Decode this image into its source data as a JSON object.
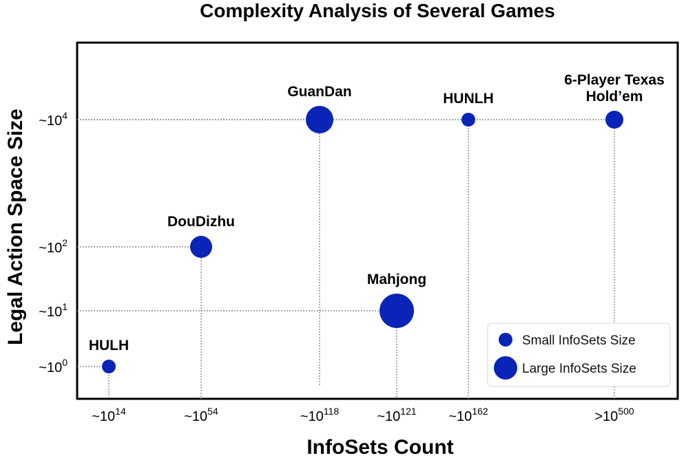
{
  "chart_data": {
    "type": "scatter",
    "title": "Complexity Analysis of Several Games",
    "xlabel": "InfoSets Count",
    "ylabel": "Legal Action Space Size",
    "x_ticks": [
      {
        "base": "~10",
        "exp": "14"
      },
      {
        "base": "~10",
        "exp": "54"
      },
      {
        "base": "~10",
        "exp": "118"
      },
      {
        "base": "~10",
        "exp": "121"
      },
      {
        "base": "~10",
        "exp": "162"
      },
      {
        "base": ">10",
        "exp": "500"
      }
    ],
    "y_ticks": [
      {
        "base": "~10",
        "exp": "0"
      },
      {
        "base": "~10",
        "exp": "1"
      },
      {
        "base": "~10",
        "exp": "2"
      },
      {
        "base": "~10",
        "exp": "4"
      }
    ],
    "points": [
      {
        "label": [
          "HULH"
        ],
        "x_tick": 0,
        "y_tick": 0,
        "infoset_size": "small"
      },
      {
        "label": [
          "DouDizhu"
        ],
        "x_tick": 1,
        "y_tick": 2,
        "infoset_size": "medium"
      },
      {
        "label": [
          "GuanDan"
        ],
        "x_tick": 2,
        "y_tick": 3,
        "infoset_size": "large"
      },
      {
        "label": [
          "Mahjong"
        ],
        "x_tick": 3,
        "y_tick": 1,
        "infoset_size": "xlarge"
      },
      {
        "label": [
          "HUNLH"
        ],
        "x_tick": 4,
        "y_tick": 3,
        "infoset_size": "small"
      },
      {
        "label": [
          "6-Player Texas",
          "Hold’em"
        ],
        "x_tick": 5,
        "y_tick": 3,
        "infoset_size": "medium-small"
      }
    ],
    "legend": {
      "position": "bottom-right",
      "entries": [
        {
          "label": "Small InfoSets Size",
          "size": "small"
        },
        {
          "label": "Large InfoSets Size",
          "size": "large"
        }
      ]
    },
    "marker_color": "#0a24b8",
    "grid": false
  }
}
